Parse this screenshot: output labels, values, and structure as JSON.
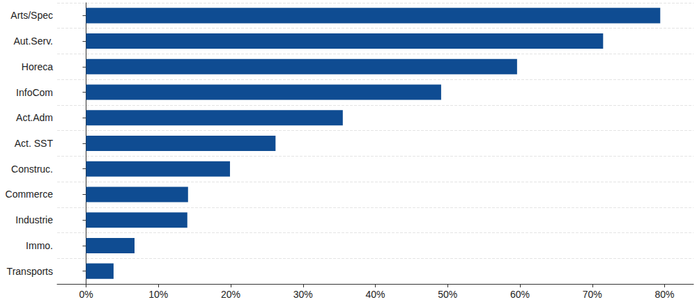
{
  "chart_data": {
    "type": "bar",
    "orientation": "horizontal",
    "categories": [
      "Arts/Spec",
      "Aut.Serv.",
      "Horeca",
      "InfoCom",
      "Act.Adm",
      "Act. SST",
      "Construc.",
      "Commerce",
      "Industrie",
      "Immo.",
      "Transports"
    ],
    "values": [
      79.4,
      71.5,
      59.6,
      49.1,
      35.5,
      26.2,
      19.9,
      14.1,
      14.0,
      6.7,
      3.8
    ],
    "color": "#0f4c92",
    "xlim": [
      -4,
      84
    ],
    "xticks": [
      {
        "value": 0,
        "label": "0%"
      },
      {
        "value": 10,
        "label": "10%"
      },
      {
        "value": 20,
        "label": "20%"
      },
      {
        "value": 30,
        "label": "30%"
      },
      {
        "value": 40,
        "label": "40%"
      },
      {
        "value": 50,
        "label": "50%"
      },
      {
        "value": 60,
        "label": "60%"
      },
      {
        "value": 70,
        "label": "70%"
      },
      {
        "value": 80,
        "label": "80%"
      }
    ],
    "grid": true
  }
}
